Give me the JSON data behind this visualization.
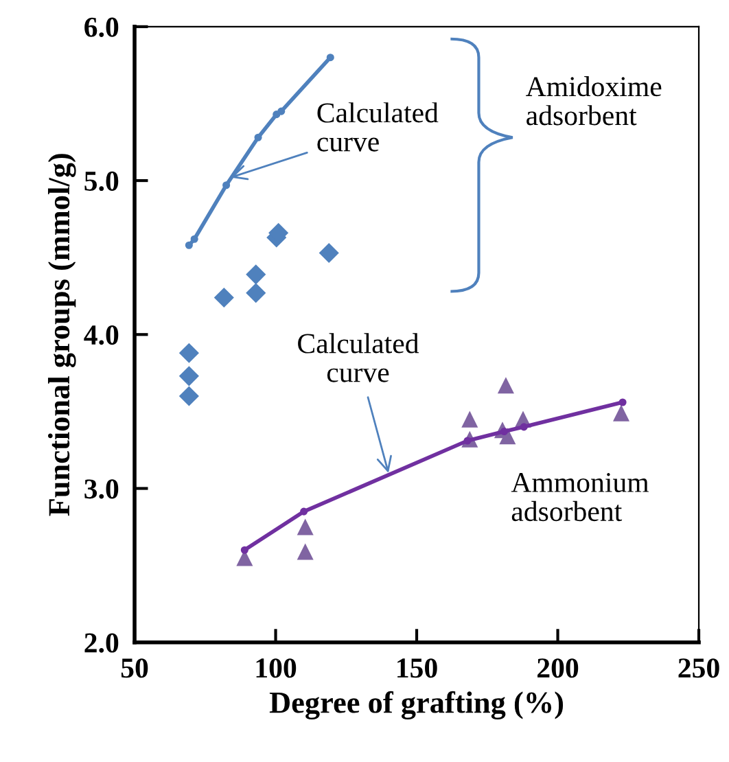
{
  "chart_data": {
    "type": "scatter",
    "xlabel": "Degree of grafting (%)",
    "ylabel": "Functional groups (mmol/g)",
    "xlim": [
      50,
      250
    ],
    "xticks": [
      50,
      100,
      150,
      200,
      250
    ],
    "ylim": [
      2.0,
      6.0
    ],
    "yticks": [
      {
        "value": 2,
        "label": "2.0"
      },
      {
        "value": 3,
        "label": "3.0"
      },
      {
        "value": 4,
        "label": "4.0"
      },
      {
        "value": 5,
        "label": "5.0"
      },
      {
        "value": 6,
        "label": "6.0"
      }
    ],
    "grid": false,
    "legend": false,
    "series": [
      {
        "marker": "diamond",
        "color": "#4f81bd",
        "x": [
          69.3,
          69.3,
          69.3,
          81.7,
          93,
          93,
          100.3,
          101,
          118.9
        ],
        "values": [
          3.88,
          3.73,
          3.6,
          4.24,
          4.39,
          4.27,
          4.63,
          4.66,
          4.53
        ]
      },
      {
        "type": "line",
        "marker": "circle",
        "color": "#4f81bd",
        "x": [
          69.3,
          71.2,
          82.5,
          93.8,
          100.3,
          102,
          119.4
        ],
        "values": [
          4.58,
          4.62,
          4.97,
          5.28,
          5.43,
          5.45,
          5.8
        ]
      },
      {
        "marker": "triangle",
        "color": "#8064a2",
        "x": [
          89,
          110.5,
          110.5,
          168.8,
          168.8,
          181.6,
          180.4,
          182.2,
          187.7,
          222.5
        ],
        "values": [
          2.55,
          2.75,
          2.59,
          3.45,
          3.32,
          3.67,
          3.38,
          3.34,
          3.45,
          3.49
        ]
      },
      {
        "type": "line",
        "marker": "circle",
        "color": "#7030a0",
        "x": [
          89,
          110,
          168,
          181,
          188,
          223
        ],
        "values": [
          2.6,
          2.85,
          3.31,
          3.37,
          3.4,
          3.56
        ]
      }
    ],
    "annotations": [
      {
        "text": "Calculated\ncurve",
        "x": 84,
        "y": 5.02
      },
      {
        "text": "Calculated\ncurve",
        "x": 140,
        "y": 3.1
      },
      "Amidoxime\nadsorbent",
      "Ammonium\nadsorbent"
    ]
  }
}
